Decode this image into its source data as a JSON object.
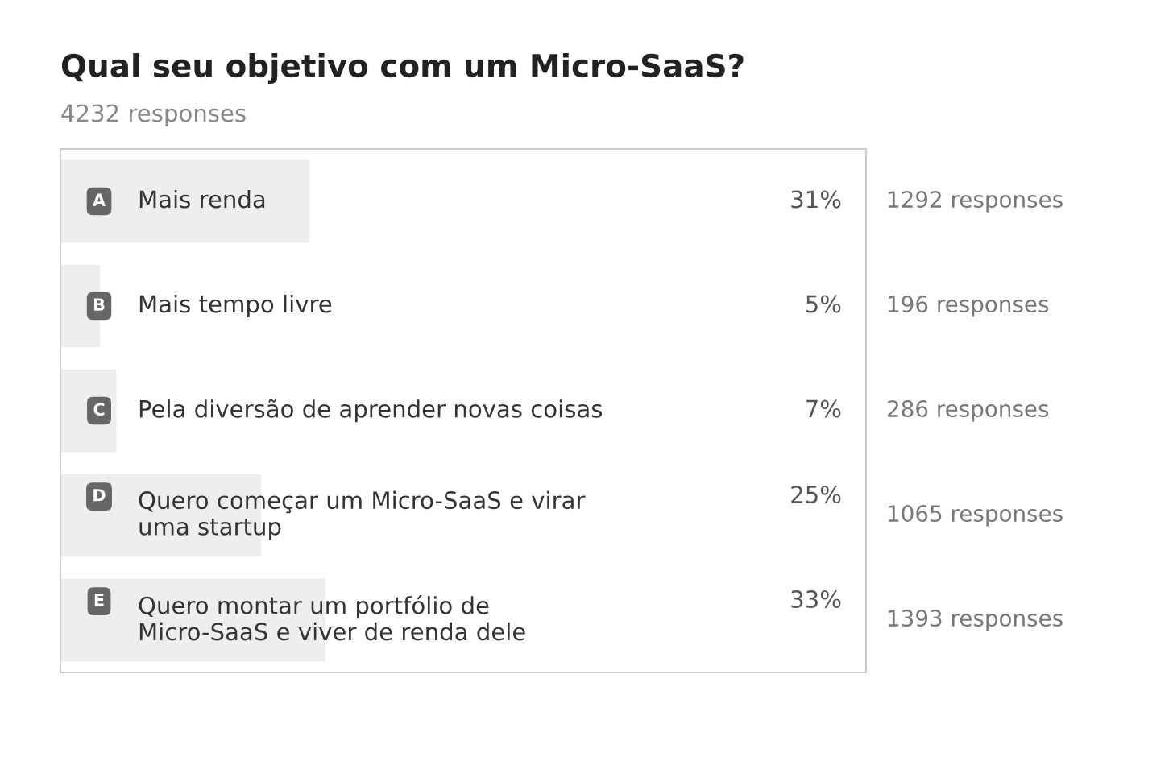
{
  "chart_data": {
    "type": "bar",
    "orientation": "horizontal",
    "title": "Qual seu objetivo com um Micro-SaaS?",
    "subtitle": "4232 responses",
    "categories": [
      "Mais renda",
      "Mais tempo livre",
      "Pela diversão de aprender novas coisas",
      "Quero começar um Micro-SaaS e virar uma startup",
      "Quero montar um portfólio de Micro-SaaS e viver de renda dele"
    ],
    "values": [
      31,
      5,
      7,
      25,
      33
    ],
    "value_labels": [
      "31%",
      "5%",
      "7%",
      "25%",
      "33%"
    ],
    "color": "#eeeeee",
    "xlim": [
      0,
      100
    ],
    "tick_labels": false,
    "legend": false,
    "annotations": [
      "A",
      "B",
      "C",
      "D",
      "E",
      "1292 responses",
      "196 responses",
      "286 responses",
      "1065 responses",
      "1393 responses"
    ]
  }
}
